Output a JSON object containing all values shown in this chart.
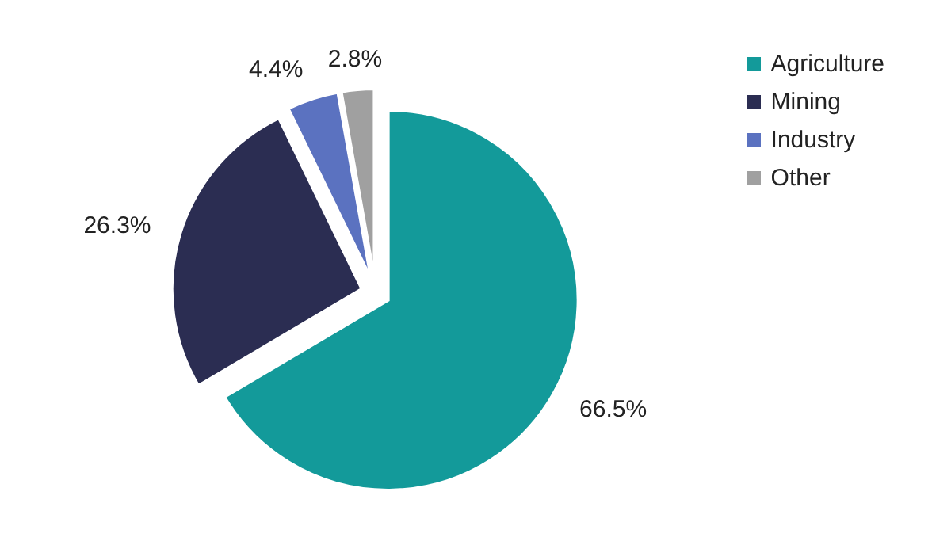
{
  "chart_data": {
    "type": "pie",
    "categories": [
      "Agriculture",
      "Mining",
      "Industry",
      "Other"
    ],
    "values": [
      66.5,
      26.3,
      4.4,
      2.8
    ],
    "colors": [
      "#139a9a",
      "#2b2d52",
      "#5b72c0",
      "#a0a0a0"
    ],
    "value_labels": [
      "66.5%",
      "26.3%",
      "4.4%",
      "2.8%"
    ],
    "legend": "right"
  }
}
